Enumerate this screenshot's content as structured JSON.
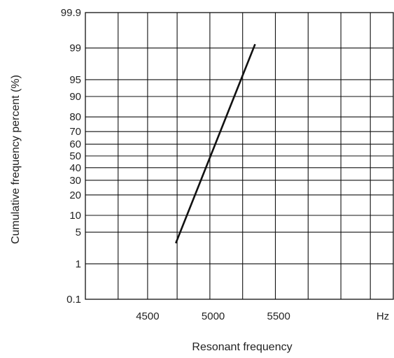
{
  "chart_data": {
    "type": "line",
    "title": "",
    "xlabel": "Resonant frequency",
    "ylabel": "Cumulative frequency percent (%)",
    "x_unit_label": "Hz",
    "x_ticks": [
      "4500",
      "5000",
      "5500"
    ],
    "y_ticks": [
      "0.1",
      "1",
      "5",
      "10",
      "20",
      "30",
      "40",
      "50",
      "60",
      "70",
      "80",
      "90",
      "95",
      "99",
      "99.9"
    ],
    "x_gridlines": [
      4275,
      4500,
      4725,
      4975,
      5225,
      5475,
      5725,
      5975,
      6200
    ],
    "xlim": [
      4025,
      6375
    ],
    "ylim": [
      0.1,
      99.9
    ],
    "y_scale": "probability",
    "grid": true,
    "series": [
      {
        "x": [
          4715,
          5320
        ],
        "y": [
          3,
          99.2
        ]
      }
    ],
    "colors": {
      "line": "#111111",
      "grid": "#111111",
      "text": "#222222"
    }
  }
}
